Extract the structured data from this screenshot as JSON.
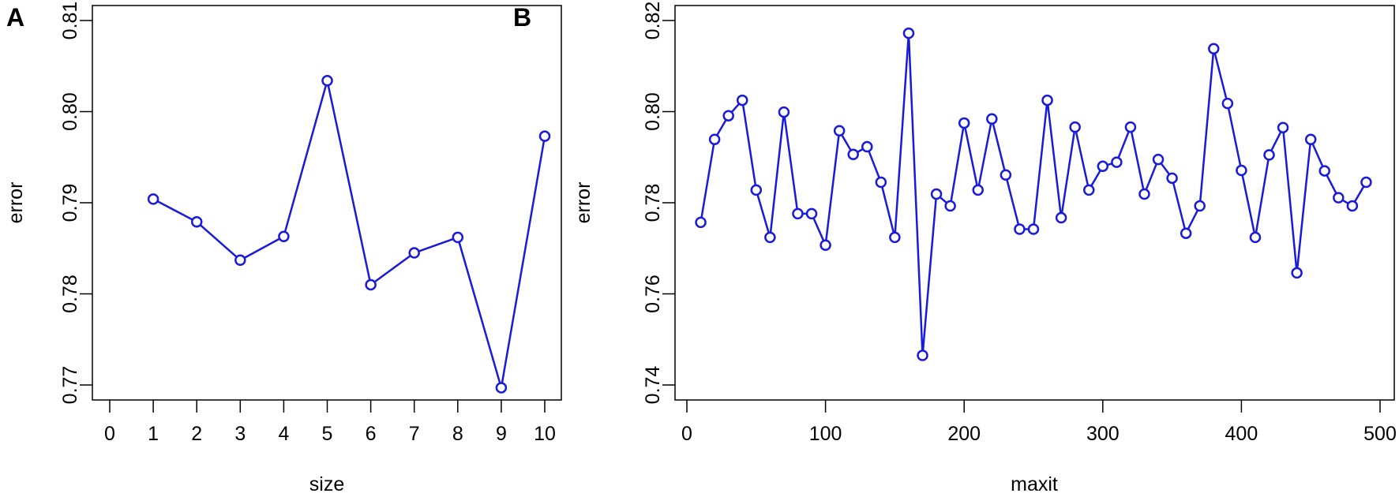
{
  "figure": {
    "line_color": "#1a1adb",
    "axis_color": "#000000",
    "background": "#ffffff"
  },
  "chart_data": [
    {
      "panel": "A",
      "type": "line",
      "title": "",
      "xlabel": "size",
      "ylabel": "error",
      "xlim": [
        0,
        10
      ],
      "ylim": [
        0.77,
        0.81
      ],
      "xticks": [
        0,
        1,
        2,
        3,
        4,
        5,
        6,
        7,
        8,
        9,
        10
      ],
      "xtick_labels": [
        "0",
        "1",
        "2",
        "3",
        "4",
        "5",
        "6",
        "7",
        "8",
        "9",
        "10"
      ],
      "yticks": [
        0.77,
        0.78,
        0.79,
        0.8,
        0.81
      ],
      "ytick_labels": [
        "0.77",
        "0.78",
        "0.79",
        "0.80",
        "0.81"
      ],
      "grid": false,
      "marker": "open-circle",
      "x": [
        1,
        2,
        3,
        4,
        5,
        6,
        7,
        8,
        9,
        10
      ],
      "values": [
        0.7904,
        0.7879,
        0.7837,
        0.7863,
        0.8034,
        0.781,
        0.7845,
        0.7862,
        0.7697,
        0.7973
      ]
    },
    {
      "panel": "B",
      "type": "line",
      "title": "",
      "xlabel": "maxit",
      "ylabel": "error",
      "xlim": [
        0,
        500
      ],
      "ylim": [
        0.74,
        0.82
      ],
      "xticks": [
        0,
        100,
        200,
        300,
        400,
        500
      ],
      "xtick_labels": [
        "0",
        "100",
        "200",
        "300",
        "400",
        "500"
      ],
      "yticks": [
        0.74,
        0.76,
        0.78,
        0.8,
        0.82
      ],
      "ytick_labels": [
        "0.74",
        "0.76",
        "0.78",
        "0.80",
        "0.82"
      ],
      "grid": false,
      "marker": "open-circle",
      "x": [
        10,
        20,
        30,
        40,
        50,
        60,
        70,
        80,
        90,
        100,
        110,
        120,
        130,
        140,
        150,
        160,
        170,
        180,
        190,
        200,
        210,
        220,
        230,
        240,
        250,
        260,
        270,
        280,
        290,
        300,
        310,
        320,
        330,
        340,
        350,
        360,
        370,
        380,
        390,
        400,
        410,
        420,
        430,
        440,
        450,
        460,
        470,
        480,
        490
      ],
      "values": [
        0.7757,
        0.7939,
        0.7991,
        0.8025,
        0.7828,
        0.7724,
        0.7999,
        0.7776,
        0.7776,
        0.7707,
        0.7958,
        0.7906,
        0.7923,
        0.7845,
        0.7724,
        0.8172,
        0.7465,
        0.7819,
        0.7793,
        0.7975,
        0.7828,
        0.7984,
        0.7861,
        0.7742,
        0.7742,
        0.8025,
        0.7767,
        0.7966,
        0.7828,
        0.788,
        0.7889,
        0.7966,
        0.7819,
        0.7895,
        0.7854,
        0.7733,
        0.7793,
        0.8138,
        0.8018,
        0.7871,
        0.7724,
        0.7905,
        0.7965,
        0.7646,
        0.7939,
        0.787,
        0.7811,
        0.7793,
        0.7845
      ]
    }
  ]
}
